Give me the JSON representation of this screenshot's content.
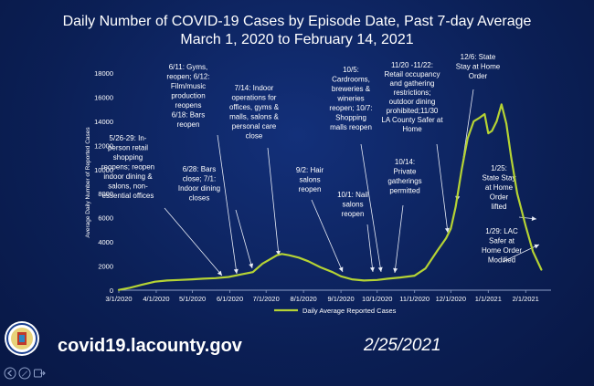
{
  "slide": {
    "title_line1": "Daily Number of COVID-19 Cases by Episode Date, Past 7-day Average",
    "title_line2": "March 1, 2020 to February 14, 2021",
    "footer_url": "covid19.lacounty.gov",
    "footer_date": "2/25/2021"
  },
  "colors": {
    "background": "#0b1f55",
    "line": "#b5d334",
    "text": "#ffffff"
  },
  "chart_data": {
    "type": "line",
    "title": "Daily Number of COVID-19 Cases by Episode Date, Past 7-day Average",
    "subtitle": "March 1, 2020 to February 14, 2021",
    "xlabel": "",
    "ylabel": "Average Daily Number of Reported Cases",
    "ylim": [
      0,
      18000
    ],
    "yticks": [
      "0",
      "2000",
      "4000",
      "6000",
      "8000",
      "10000",
      "12000",
      "14000",
      "16000",
      "18000"
    ],
    "xticks": [
      "3/1/2020",
      "4/1/2020",
      "5/1/2020",
      "6/1/2020",
      "7/1/2020",
      "8/1/2020",
      "9/1/2020",
      "10/1/2020",
      "11/1/2020",
      "12/1/2020",
      "1/1/2021",
      "2/1/2021"
    ],
    "grid": false,
    "legend_position": "bottom",
    "series": [
      {
        "name": "Daily Average Reported Cases",
        "x": [
          "2020-03-01",
          "2020-03-10",
          "2020-03-20",
          "2020-03-31",
          "2020-04-10",
          "2020-04-20",
          "2020-05-01",
          "2020-05-10",
          "2020-05-20",
          "2020-05-31",
          "2020-06-10",
          "2020-06-20",
          "2020-06-28",
          "2020-07-05",
          "2020-07-10",
          "2020-07-14",
          "2020-07-20",
          "2020-07-28",
          "2020-08-05",
          "2020-08-15",
          "2020-08-25",
          "2020-09-01",
          "2020-09-10",
          "2020-09-20",
          "2020-10-01",
          "2020-10-10",
          "2020-10-20",
          "2020-11-01",
          "2020-11-10",
          "2020-11-20",
          "2020-11-27",
          "2020-12-01",
          "2020-12-05",
          "2020-12-10",
          "2020-12-15",
          "2020-12-20",
          "2020-12-25",
          "2020-12-29",
          "2021-01-01",
          "2021-01-04",
          "2021-01-08",
          "2021-01-12",
          "2021-01-16",
          "2021-01-20",
          "2021-01-25",
          "2021-02-01",
          "2021-02-07",
          "2021-02-14"
        ],
        "y": [
          20,
          200,
          450,
          700,
          800,
          850,
          900,
          950,
          1000,
          1100,
          1300,
          1500,
          2200,
          2600,
          2900,
          3000,
          2900,
          2700,
          2400,
          1900,
          1500,
          1150,
          900,
          800,
          850,
          950,
          1050,
          1200,
          1800,
          3300,
          4300,
          5100,
          6900,
          10000,
          12600,
          14000,
          14300,
          14600,
          13000,
          13200,
          14000,
          15400,
          13800,
          11000,
          8000,
          5300,
          3200,
          1700
        ]
      }
    ],
    "annotations": [
      "5/26-29: In-person retail shopping reopens; reopen indoor dining & salons, non-essential offices",
      "6/11: Gyms, reopen; 6/12: Film/music production reopens 6/18: Bars reopen",
      "6/28: Bars close; 7/1: Indoor dining closes",
      "7/14: Indoor operations for offices, gyms & malls, salons & personal care close",
      "9/2: Hair salons reopen",
      "10/5: Cardrooms, breweries & wineries reopen; 10/7: Shopping malls reopen",
      "10/1: Nail salons reopen",
      "10/14: Private gatherings permitted",
      "11/20 -11/22: Retail occupancy and gathering restrictions; outdoor dining prohibited;11/30 LA County Safer at Home",
      "12/6: State Stay at Home Order",
      "1/25: State Stay at Home Order lifted",
      "1/29: LAC Safer at Home Order Modified"
    ]
  }
}
